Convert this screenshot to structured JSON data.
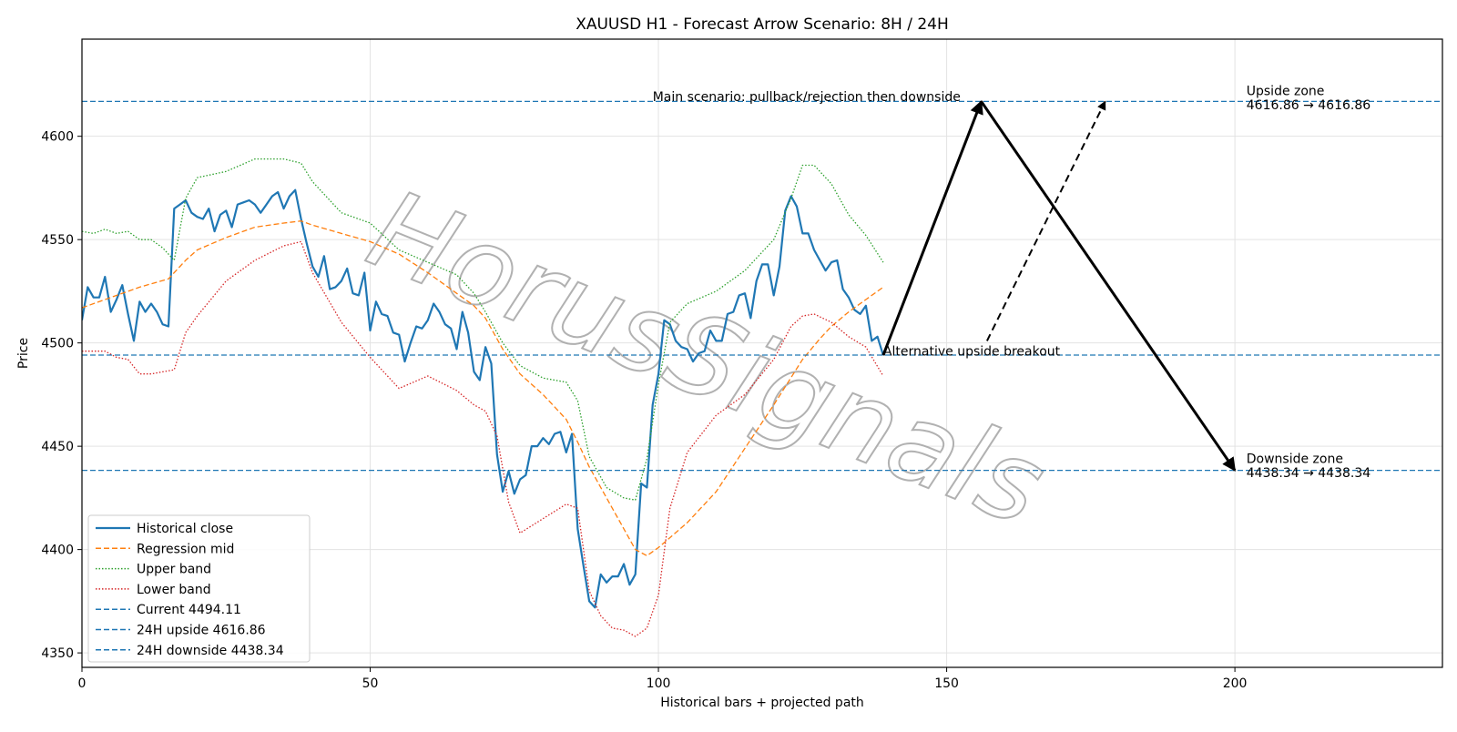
{
  "chart_data": {
    "type": "line",
    "title": "XAUUSD H1 - Forecast Arrow Scenario: 8H / 24H",
    "xlabel": "Historical bars + projected path",
    "ylabel": "Price",
    "xlim": [
      0,
      236
    ],
    "ylim": [
      4343,
      4647
    ],
    "x_ticks": [
      0,
      50,
      100,
      150,
      200
    ],
    "y_ticks": [
      4350,
      4400,
      4450,
      4500,
      4550,
      4600
    ],
    "grid": true,
    "legend_position": "lower-left",
    "watermark": "HorusSignals",
    "series": [
      {
        "name": "Historical close",
        "style": "solid",
        "color": "#1f77b4",
        "x_start": 0,
        "values": [
          4511,
          4527,
          4522,
          4522,
          4532,
          4515,
          4521,
          4528,
          4514,
          4501,
          4520,
          4515,
          4519,
          4515,
          4509,
          4508,
          4565,
          4567,
          4569,
          4563,
          4561,
          4560,
          4565,
          4554,
          4562,
          4564,
          4556,
          4567,
          4568,
          4569,
          4567,
          4563,
          4567,
          4571,
          4573,
          4565,
          4571,
          4574,
          4560,
          4548,
          4537,
          4532,
          4542,
          4526,
          4527,
          4530,
          4536,
          4524,
          4523,
          4534,
          4506,
          4520,
          4514,
          4513,
          4505,
          4504,
          4491,
          4500,
          4508,
          4507,
          4511,
          4519,
          4515,
          4509,
          4507,
          4497,
          4515,
          4505,
          4486,
          4482,
          4498,
          4490,
          4446,
          4428,
          4438,
          4427,
          4434,
          4436,
          4450,
          4450,
          4454,
          4451,
          4456,
          4457,
          4447,
          4456,
          4410,
          4392,
          4375,
          4372,
          4388,
          4384,
          4387,
          4387,
          4393,
          4383,
          4388,
          4432,
          4430,
          4470,
          4485,
          4511,
          4509,
          4501,
          4498,
          4497,
          4491,
          4495,
          4496,
          4506,
          4501,
          4501,
          4514,
          4515,
          4523,
          4524,
          4512,
          4530,
          4538,
          4538,
          4523,
          4537,
          4564,
          4571,
          4566,
          4553,
          4553,
          4545,
          4540,
          4535,
          4539,
          4540,
          4526,
          4522,
          4516,
          4514,
          4518,
          4501,
          4503,
          4494
        ]
      },
      {
        "name": "Regression mid",
        "style": "dashed",
        "color": "#ff7f0e",
        "x": [
          0,
          5,
          10,
          15,
          18,
          20,
          25,
          30,
          35,
          38,
          40,
          45,
          50,
          55,
          60,
          65,
          68,
          70,
          73,
          76,
          80,
          84,
          86,
          88,
          91,
          94,
          96,
          98,
          100,
          105,
          110,
          115,
          120,
          125,
          128,
          130,
          133,
          136,
          139
        ],
        "values": [
          4517,
          4522,
          4527,
          4531,
          4540,
          4545,
          4551,
          4556,
          4558,
          4559,
          4557,
          4553,
          4549,
          4543,
          4534,
          4524,
          4518,
          4512,
          4497,
          4485,
          4475,
          4463,
          4452,
          4440,
          4425,
          4410,
          4400,
          4397,
          4401,
          4413,
          4428,
          4449,
          4470,
          4492,
          4502,
          4508,
          4515,
          4521,
          4527
        ]
      },
      {
        "name": "Upper band",
        "style": "dotted",
        "color": "#2ca02c",
        "x": [
          0,
          2,
          4,
          6,
          8,
          10,
          12,
          14,
          16,
          18,
          20,
          25,
          30,
          35,
          38,
          40,
          45,
          50,
          55,
          60,
          65,
          68,
          70,
          73,
          76,
          80,
          84,
          86,
          88,
          91,
          94,
          96,
          98,
          100,
          102,
          105,
          110,
          115,
          120,
          123,
          125,
          127,
          130,
          133,
          136,
          139
        ],
        "values": [
          4554,
          4553,
          4555,
          4553,
          4554,
          4550,
          4550,
          4546,
          4540,
          4570,
          4580,
          4583,
          4589,
          4589,
          4587,
          4578,
          4563,
          4558,
          4545,
          4539,
          4533,
          4524,
          4515,
          4500,
          4489,
          4483,
          4481,
          4472,
          4445,
          4430,
          4425,
          4424,
          4444,
          4480,
          4510,
          4519,
          4525,
          4535,
          4550,
          4570,
          4586,
          4586,
          4577,
          4562,
          4552,
          4539
        ]
      },
      {
        "name": "Lower band",
        "style": "dotted",
        "color": "#d62728",
        "x": [
          0,
          2,
          4,
          6,
          8,
          10,
          12,
          14,
          16,
          18,
          20,
          25,
          30,
          35,
          38,
          40,
          45,
          50,
          55,
          60,
          65,
          68,
          70,
          72,
          74,
          76,
          80,
          84,
          86,
          88,
          90,
          92,
          94,
          96,
          98,
          100,
          102,
          105,
          110,
          115,
          120,
          123,
          125,
          127,
          130,
          133,
          136,
          139
        ],
        "values": [
          4496,
          4496,
          4496,
          4493,
          4492,
          4485,
          4485,
          4486,
          4487,
          4505,
          4513,
          4530,
          4540,
          4547,
          4549,
          4534,
          4510,
          4493,
          4478,
          4484,
          4477,
          4470,
          4467,
          4455,
          4423,
          4408,
          4415,
          4422,
          4420,
          4380,
          4368,
          4362,
          4361,
          4358,
          4362,
          4378,
          4420,
          4447,
          4465,
          4475,
          4492,
          4508,
          4513,
          4514,
          4510,
          4503,
          4498,
          4484
        ]
      }
    ],
    "reference_lines": [
      {
        "name": "Current 4494.11",
        "value": 4494.11,
        "style": "dashed",
        "color": "#1f77b4"
      },
      {
        "name": "24H upside 4616.86",
        "value": 4616.86,
        "style": "dashed",
        "color": "#1f77b4"
      },
      {
        "name": "24H downside 4438.34",
        "value": 4438.34,
        "style": "dashed",
        "color": "#1f77b4"
      }
    ],
    "projections": [
      {
        "name": "main-scenario",
        "style": "solid",
        "points": [
          [
            139,
            4494.11
          ],
          [
            156,
            4616.86
          ],
          [
            200,
            4438.34
          ]
        ]
      },
      {
        "name": "alternative-scenario",
        "style": "dashed",
        "points": [
          [
            157,
            4501
          ],
          [
            177.5,
            4616.86
          ]
        ]
      }
    ],
    "annotations": [
      {
        "id": "main",
        "text": "Main scenario: pullback/rejection then downside",
        "x": 99,
        "y": 4617
      },
      {
        "id": "alt",
        "text": "Alternative upside breakout",
        "x": 139,
        "y": 4494
      },
      {
        "id": "up1",
        "text": "Upside zone",
        "x": 202,
        "y": 4620
      },
      {
        "id": "up2",
        "text": "4616.86 → 4616.86",
        "x": 202,
        "y": 4613
      },
      {
        "id": "down1",
        "text": "Downside zone",
        "x": 202,
        "y": 4442
      },
      {
        "id": "down2",
        "text": "4438.34 → 4438.34",
        "x": 202,
        "y": 4435
      }
    ]
  }
}
